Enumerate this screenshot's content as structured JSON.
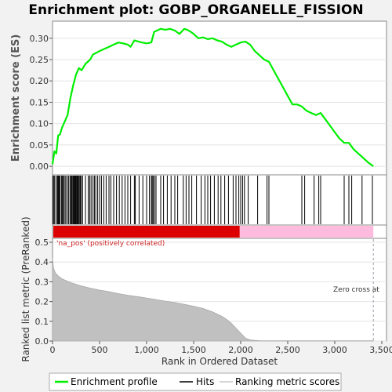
{
  "chart_data": {
    "type": "line",
    "title": "Enrichment plot: GOBP_ORGANELLE_FISSION",
    "panels": {
      "enrichment": {
        "ylabel": "Enrichment score (ES)",
        "ylim": [
          -0.02,
          0.34
        ],
        "yticks": [
          "0.00",
          "0.05",
          "0.10",
          "0.15",
          "0.20",
          "0.25",
          "0.30"
        ],
        "ytick_values": [
          0.0,
          0.05,
          0.1,
          0.15,
          0.2,
          0.25,
          0.3
        ],
        "series": [
          {
            "name": "Enrichment profile",
            "color": "#00ee00",
            "x": [
              0,
              20,
              40,
              60,
              80,
              100,
              130,
              160,
              190,
              220,
              250,
              280,
              310,
              350,
              400,
              430,
              460,
              500,
              550,
              600,
              650,
              700,
              750,
              800,
              830,
              870,
              900,
              950,
              1000,
              1050,
              1080,
              1110,
              1150,
              1200,
              1250,
              1300,
              1350,
              1400,
              1430,
              1470,
              1500,
              1550,
              1600,
              1650,
              1700,
              1750,
              1800,
              1850,
              1900,
              1950,
              2000,
              2050,
              2100,
              2150,
              2200,
              2250,
              2300,
              2350,
              2400,
              2450,
              2500,
              2550,
              2600,
              2650,
              2700,
              2750,
              2800,
              2850,
              2900,
              2950,
              3000,
              3050,
              3100,
              3150,
              3200,
              3250,
              3300,
              3350,
              3410
            ],
            "values": [
              0.005,
              0.035,
              0.03,
              0.072,
              0.075,
              0.09,
              0.105,
              0.12,
              0.16,
              0.19,
              0.215,
              0.23,
              0.225,
              0.24,
              0.25,
              0.262,
              0.265,
              0.27,
              0.275,
              0.28,
              0.285,
              0.29,
              0.288,
              0.285,
              0.28,
              0.295,
              0.293,
              0.29,
              0.288,
              0.29,
              0.315,
              0.318,
              0.322,
              0.32,
              0.322,
              0.318,
              0.31,
              0.322,
              0.32,
              0.315,
              0.31,
              0.3,
              0.302,
              0.298,
              0.3,
              0.295,
              0.292,
              0.285,
              0.28,
              0.285,
              0.29,
              0.292,
              0.285,
              0.27,
              0.26,
              0.25,
              0.245,
              0.225,
              0.205,
              0.185,
              0.165,
              0.145,
              0.145,
              0.14,
              0.13,
              0.125,
              0.12,
              0.125,
              0.11,
              0.095,
              0.08,
              0.065,
              0.055,
              0.055,
              0.04,
              0.03,
              0.02,
              0.01,
              0.0
            ]
          }
        ]
      },
      "hits": {
        "name": "Hits",
        "positions": [
          5,
          15,
          25,
          45,
          55,
          62,
          70,
          80,
          95,
          105,
          115,
          125,
          140,
          155,
          170,
          185,
          195,
          205,
          215,
          222,
          230,
          238,
          245,
          252,
          260,
          268,
          275,
          285,
          295,
          305,
          320,
          350,
          380,
          395,
          410,
          430,
          445,
          460,
          480,
          500,
          520,
          545,
          570,
          600,
          620,
          650,
          680,
          710,
          740,
          770,
          800,
          830,
          870,
          880,
          920,
          960,
          1000,
          1030,
          1050,
          1060,
          1070,
          1085,
          1100,
          1150,
          1180,
          1220,
          1260,
          1300,
          1330,
          1390,
          1420,
          1450,
          1480,
          1530,
          1580,
          1620,
          1650,
          1680,
          1720,
          1760,
          1790,
          1830,
          1870,
          1920,
          1950,
          1980,
          2000,
          2020,
          2040,
          2080,
          2180,
          2280,
          2300,
          2650,
          2680,
          2780,
          2830,
          2850,
          3100,
          3150,
          3180,
          3290,
          3400
        ]
      },
      "ranked_metric": {
        "name": "Ranking metric scores",
        "ylabel": "Ranked list metric (PreRanked)",
        "xlabel": "Rank in Ordered Dataset",
        "ylim": [
          0,
          0.52
        ],
        "yticks": [
          "0.0",
          "0.1",
          "0.2",
          "0.3",
          "0.4",
          "0.5"
        ],
        "ytick_values": [
          0.0,
          0.1,
          0.2,
          0.3,
          0.4,
          0.5
        ],
        "xticks": [
          "0",
          "500",
          "1,000",
          "1,500",
          "2,000",
          "2,500",
          "3,000",
          "3,500"
        ],
        "xtick_values": [
          0,
          500,
          1000,
          1500,
          2000,
          2500,
          3000,
          3500
        ],
        "xlim": [
          0,
          3550
        ],
        "x": [
          0,
          10,
          30,
          60,
          100,
          150,
          200,
          300,
          400,
          500,
          600,
          700,
          800,
          900,
          1000,
          1100,
          1200,
          1300,
          1400,
          1500,
          1600,
          1700,
          1800,
          1850,
          1900,
          1950,
          2000,
          2050,
          2100,
          2150,
          2200,
          2300,
          2500,
          2800,
          3100,
          3410
        ],
        "values": [
          0.42,
          0.37,
          0.345,
          0.33,
          0.315,
          0.305,
          0.295,
          0.28,
          0.268,
          0.258,
          0.25,
          0.24,
          0.232,
          0.225,
          0.218,
          0.21,
          0.202,
          0.195,
          0.186,
          0.176,
          0.165,
          0.148,
          0.125,
          0.11,
          0.09,
          0.065,
          0.04,
          0.015,
          0.006,
          0.003,
          0.002,
          0.001,
          0.001,
          0.001,
          0.001,
          0.001
        ],
        "annotations": {
          "positive": "'na_pos' (positively correlated)",
          "zero_cross": "Zero cross at"
        },
        "zero_cross_rank": 3410
      }
    },
    "legend": {
      "placement": "bottom",
      "entries": [
        "Enrichment profile",
        "Hits",
        "Ranking metric scores"
      ]
    },
    "colors": {
      "es_line": "#00ee00",
      "hits": "#000000",
      "metric_fill": "#c0c0c0",
      "bar_red": "#dd0000",
      "bar_pink": "#ffbbdd"
    }
  }
}
